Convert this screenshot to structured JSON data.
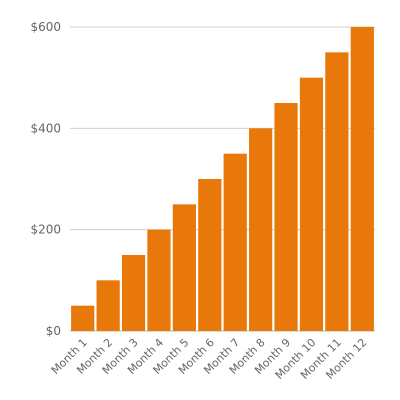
{
  "chart_data": {
    "type": "bar",
    "categories": [
      "Month 1",
      "Month 2",
      "Month 3",
      "Month 4",
      "Month 5",
      "Month 6",
      "Month 7",
      "Month 8",
      "Month 9",
      "Month 10",
      "Month 11",
      "Month 12"
    ],
    "values": [
      50,
      100,
      150,
      200,
      250,
      300,
      350,
      400,
      450,
      500,
      550,
      600
    ],
    "title": "",
    "xlabel": "",
    "ylabel": "",
    "ylim": [
      0,
      600
    ],
    "yticks": [
      {
        "value": 0,
        "label": "$0"
      },
      {
        "value": 200,
        "label": "$200"
      },
      {
        "value": 400,
        "label": "$400"
      },
      {
        "value": 600,
        "label": "$600"
      }
    ],
    "grid": true,
    "legend": "none",
    "bar_color": "#e8780a"
  }
}
